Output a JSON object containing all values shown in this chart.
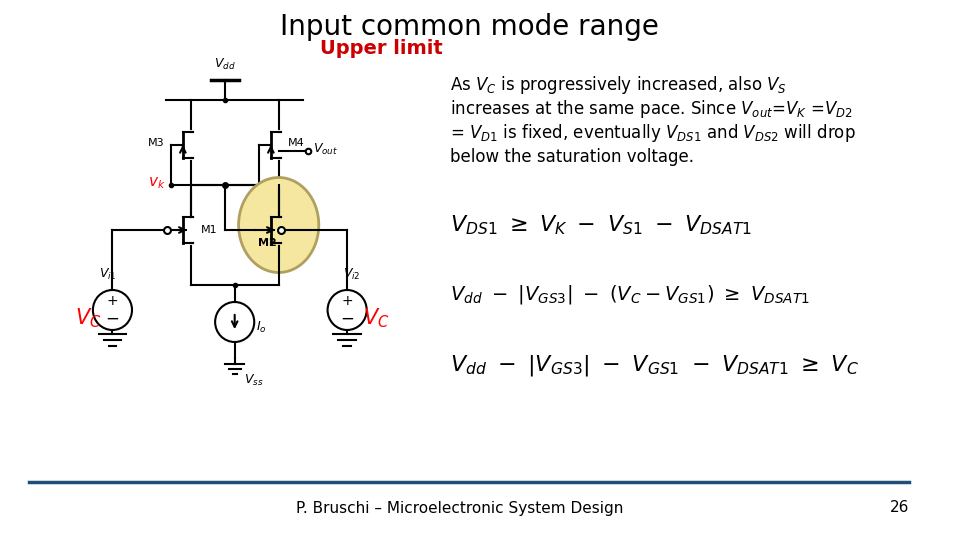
{
  "title": "Input common mode range",
  "subtitle": "Upper limit",
  "subtitle_color": "#cc0000",
  "background_color": "#ffffff",
  "title_fontsize": 20,
  "subtitle_fontsize": 14,
  "text_color": "#000000",
  "footer_text": "P. Bruschi – Microelectronic System Design",
  "footer_number": "26",
  "highlight_color": "#f5e6a0",
  "highlight_edge": "#b0a060",
  "line_color": "#000000",
  "red_color": "#cc0000",
  "blue_line_color": "#1f4e79",
  "desc_line1": "As $V_C$ is progressively increased, also $V_S$",
  "desc_line2": "increases at the same pace. Since $V_{out}$=$V_K$ =$V_{D2}$",
  "desc_line3": "= $V_{D1}$ is fixed, eventually $V_{DS1}$ and $V_{DS2}$ will drop",
  "desc_line4": "below the saturation voltage.",
  "eq1": "$V_{DS1}$  $\\geq$  $V_K$  $-$  $V_{S1}$  $-$  $V_{DSAT1}$",
  "eq2": "$V_{dd}$  $-$  $|V_{GS3}|$  $-$  $(V_C - V_{GS1})$  $\\geq$  $V_{DSAT1}$",
  "eq3": "$V_{dd}$  $-$  $|V_{GS3}|$  $-$  $V_{GS1}$  $-$  $V_{DSAT1}$  $\\geq$  $V_C$"
}
